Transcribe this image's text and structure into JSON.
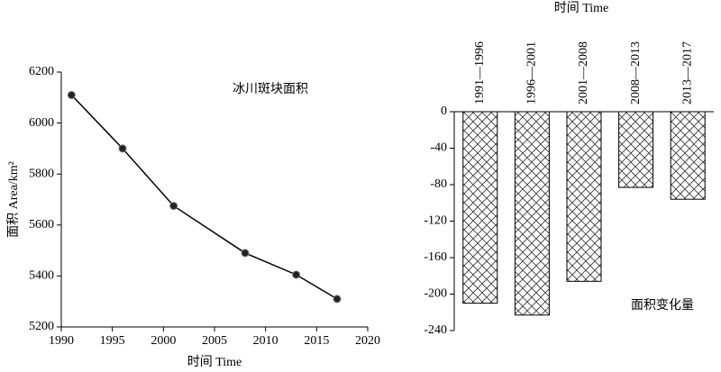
{
  "chart_data": [
    {
      "type": "line",
      "annotation": "冰川斑块面积",
      "xlabel": "时间 Time",
      "ylabel": "面积 Area/km²",
      "x": [
        1991,
        1996,
        2001,
        2008,
        2013,
        2017
      ],
      "values": [
        6110,
        5900,
        5675,
        5490,
        5405,
        5310
      ],
      "color": "#000000",
      "xlim": [
        1990,
        2020
      ],
      "xticks": [
        1990,
        1995,
        2000,
        2005,
        2010,
        2015,
        2020
      ],
      "ylim": [
        5200,
        6200
      ],
      "yticks": [
        5200,
        5400,
        5600,
        5800,
        6000,
        6200
      ]
    },
    {
      "type": "bar",
      "annotation": "面积变化量",
      "xlabel": "时间 Time",
      "categories": [
        "1991—1996",
        "1996—2001",
        "2001—2008",
        "2008—2013",
        "2013—2017"
      ],
      "values": [
        -210,
        -223,
        -186,
        -83,
        -96
      ],
      "color": "#000000",
      "ylim": [
        -240,
        0
      ],
      "yticks": [
        0,
        -40,
        -80,
        -120,
        -160,
        -200,
        -240
      ]
    }
  ]
}
